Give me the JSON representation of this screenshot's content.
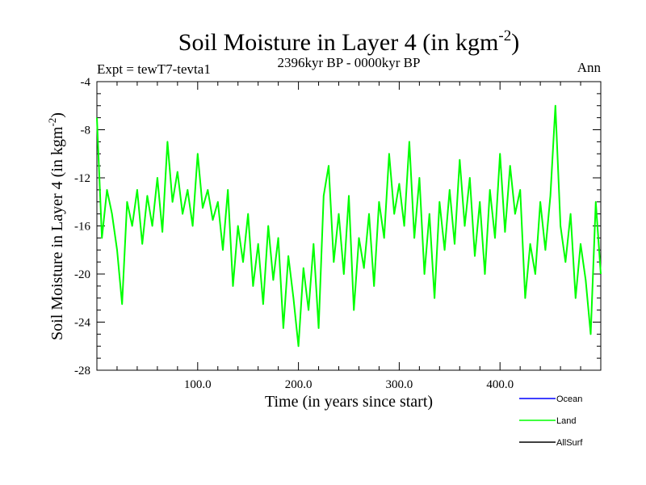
{
  "chart_data": {
    "type": "line",
    "title": "Soil Moisture in Layer 4 (in kgm",
    "title_sup": "-2",
    "title_close": ")",
    "subtitle": "2396kyr BP - 0000kyr BP",
    "left_label": "Expt = tewT7-tevta1",
    "right_label": "Ann",
    "xlabel": "Time (in years since start)",
    "ylabel": "Soil Moisture in Layer 4 (in kgm",
    "ylabel_sup": "-2",
    "ylabel_close": ")",
    "xlim": [
      0,
      500
    ],
    "ylim": [
      -28,
      -4
    ],
    "x_ticks": [
      100,
      200,
      300,
      400
    ],
    "x_tick_labels": [
      "100.0",
      "200.0",
      "300.0",
      "400.0"
    ],
    "y_ticks": [
      -4,
      -8,
      -12,
      -16,
      -20,
      -24,
      -28
    ],
    "y_tick_labels": [
      "-4",
      "-8",
      "-12",
      "-16",
      "-20",
      "-24",
      "-28"
    ],
    "legend": [
      {
        "name": "Ocean",
        "color": "#0000ff"
      },
      {
        "name": "Land",
        "color": "#00ff00"
      },
      {
        "name": "AllSurf",
        "color": "#000000"
      }
    ],
    "series": [
      {
        "name": "Land",
        "color": "#00ff00",
        "x": [
          0,
          5,
          10,
          15,
          20,
          25,
          30,
          35,
          40,
          45,
          50,
          55,
          60,
          65,
          70,
          75,
          80,
          85,
          90,
          95,
          100,
          105,
          110,
          115,
          120,
          125,
          130,
          135,
          140,
          145,
          150,
          155,
          160,
          165,
          170,
          175,
          180,
          185,
          190,
          195,
          200,
          205,
          210,
          215,
          220,
          225,
          230,
          235,
          240,
          245,
          250,
          255,
          260,
          265,
          270,
          275,
          280,
          285,
          290,
          295,
          300,
          305,
          310,
          315,
          320,
          325,
          330,
          335,
          340,
          345,
          350,
          355,
          360,
          365,
          370,
          375,
          380,
          385,
          390,
          395,
          400,
          405,
          410,
          415,
          420,
          425,
          430,
          435,
          440,
          445,
          450,
          455,
          460,
          465,
          470,
          475,
          480,
          485,
          490,
          495,
          500
        ],
        "values": [
          -7.0,
          -17.0,
          -13.0,
          -15.0,
          -18.0,
          -22.5,
          -14.0,
          -16.0,
          -13.0,
          -17.5,
          -13.5,
          -16.0,
          -12.0,
          -16.5,
          -9.0,
          -14.0,
          -11.5,
          -15.0,
          -13.0,
          -16.0,
          -10.0,
          -14.5,
          -13.0,
          -15.5,
          -14.0,
          -18.0,
          -13.0,
          -21.0,
          -16.0,
          -19.0,
          -15.0,
          -21.0,
          -17.5,
          -22.5,
          -16.0,
          -20.5,
          -17.0,
          -24.5,
          -18.5,
          -22.0,
          -26.0,
          -19.5,
          -23.0,
          -17.5,
          -24.5,
          -13.5,
          -11.0,
          -19.0,
          -15.0,
          -20.0,
          -13.5,
          -23.0,
          -17.0,
          -19.5,
          -15.0,
          -21.0,
          -14.0,
          -17.0,
          -10.0,
          -15.0,
          -12.5,
          -16.0,
          -9.0,
          -17.0,
          -12.0,
          -20.0,
          -15.0,
          -22.0,
          -14.0,
          -18.0,
          -13.0,
          -17.5,
          -10.5,
          -16.0,
          -12.0,
          -18.5,
          -14.0,
          -20.0,
          -13.0,
          -17.0,
          -10.0,
          -16.5,
          -11.0,
          -15.0,
          -13.0,
          -22.0,
          -17.5,
          -20.0,
          -14.0,
          -18.0,
          -13.5,
          -6.0,
          -16.0,
          -19.0,
          -15.0,
          -22.0,
          -17.5,
          -20.5,
          -25.0,
          -14.0,
          -20.0
        ]
      }
    ]
  }
}
